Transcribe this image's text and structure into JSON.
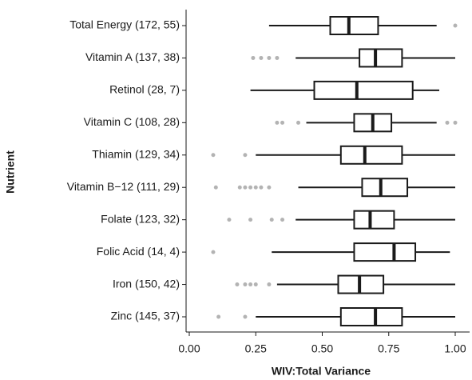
{
  "chart_data": {
    "type": "box",
    "x_label": "WIV:Total Variance",
    "y_label": "Nutrient",
    "categories": [
      "Total Energy (172, 55)",
      "Vitamin A (137, 38)",
      "Retinol (28, 7)",
      "Vitamin C (108, 28)",
      "Thiamin (129, 34)",
      "Vitamin B−12 (111, 29)",
      "Folate (123, 32)",
      "Folic Acid (14, 4)",
      "Iron (150, 42)",
      "Zinc (145, 37)"
    ],
    "boxes": [
      {
        "low": 0.3,
        "q1": 0.53,
        "median": 0.6,
        "q3": 0.71,
        "high": 0.93,
        "outliers": [
          1.0
        ]
      },
      {
        "low": 0.4,
        "q1": 0.64,
        "median": 0.7,
        "q3": 0.8,
        "high": 1.0,
        "outliers": [
          0.24,
          0.27,
          0.3,
          0.33
        ]
      },
      {
        "low": 0.23,
        "q1": 0.47,
        "median": 0.63,
        "q3": 0.84,
        "high": 0.94,
        "outliers": []
      },
      {
        "low": 0.44,
        "q1": 0.62,
        "median": 0.69,
        "q3": 0.76,
        "high": 0.93,
        "outliers": [
          0.33,
          0.35,
          0.41,
          0.97,
          1.0
        ]
      },
      {
        "low": 0.25,
        "q1": 0.57,
        "median": 0.66,
        "q3": 0.8,
        "high": 1.0,
        "outliers": [
          0.09,
          0.21
        ]
      },
      {
        "low": 0.41,
        "q1": 0.65,
        "median": 0.72,
        "q3": 0.82,
        "high": 1.0,
        "outliers": [
          0.1,
          0.19,
          0.21,
          0.23,
          0.25,
          0.27,
          0.3
        ]
      },
      {
        "low": 0.4,
        "q1": 0.62,
        "median": 0.68,
        "q3": 0.77,
        "high": 1.0,
        "outliers": [
          0.15,
          0.23,
          0.31,
          0.35
        ]
      },
      {
        "low": 0.31,
        "q1": 0.62,
        "median": 0.77,
        "q3": 0.85,
        "high": 0.98,
        "outliers": [
          0.09
        ]
      },
      {
        "low": 0.33,
        "q1": 0.56,
        "median": 0.64,
        "q3": 0.73,
        "high": 1.0,
        "outliers": [
          0.18,
          0.21,
          0.23,
          0.25,
          0.3
        ]
      },
      {
        "low": 0.25,
        "q1": 0.57,
        "median": 0.7,
        "q3": 0.8,
        "high": 1.0,
        "outliers": [
          0.11,
          0.21
        ]
      }
    ],
    "color": "#1a1a1a",
    "outlier_color": "#b3b3b3",
    "xlim": [
      -0.01,
      1.03
    ],
    "xticks": [
      {
        "value": 0,
        "label": "0.00"
      },
      0.25,
      {
        "value": 0.5,
        "label": "0.50"
      },
      0.75,
      {
        "value": 1,
        "label": "1.00"
      }
    ]
  }
}
